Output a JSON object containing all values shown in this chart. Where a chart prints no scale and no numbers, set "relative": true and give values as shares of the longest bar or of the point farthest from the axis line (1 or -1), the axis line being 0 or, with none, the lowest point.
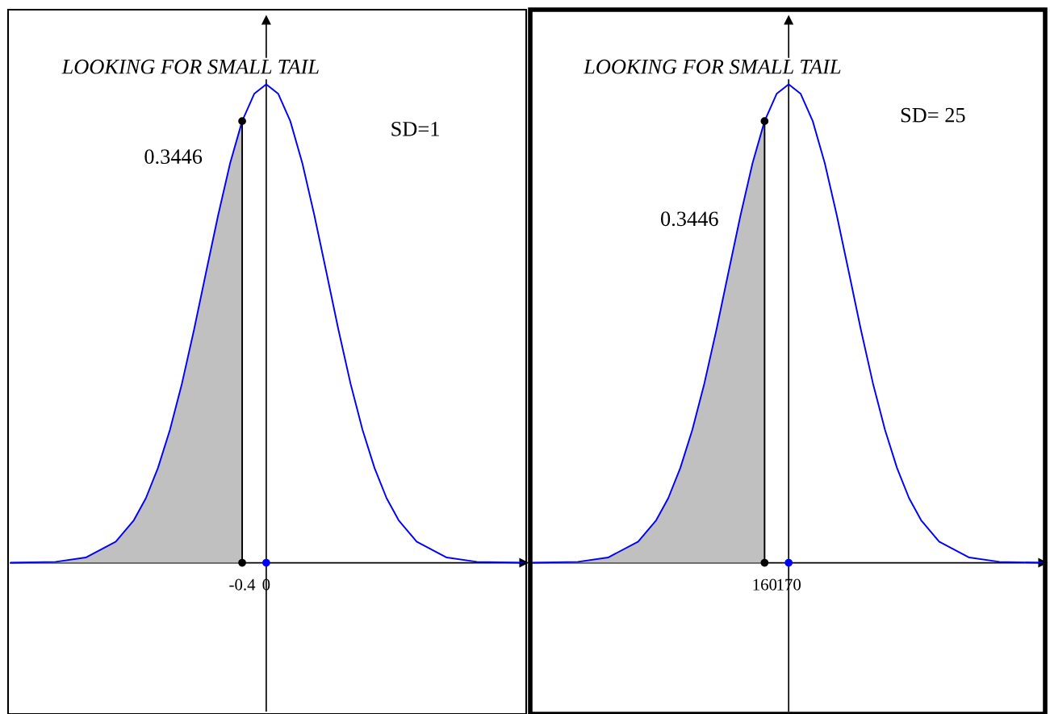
{
  "chart_data": [
    {
      "type": "line",
      "title": "LOOKING FOR SMALL TAIL",
      "relative": true,
      "xlim": [
        -4.25,
        4.28
      ],
      "xticks": [
        -0.4,
        0
      ],
      "ref_lines": [
        {
          "axis": "x",
          "value": 0,
          "color": "#000000"
        }
      ],
      "annotations": [
        "0.3446",
        "SD=1"
      ],
      "series": [
        {
          "type": "area",
          "color": "#c0c0c0",
          "x": [
            -4.25,
            -3.5,
            -3,
            -2.5,
            -2.2,
            -2,
            -1.8,
            -1.6,
            -1.4,
            -1.2,
            -1,
            -0.8,
            -0.6,
            -0.4
          ],
          "values": [
            0,
            0.002,
            0.011,
            0.044,
            0.089,
            0.135,
            0.198,
            0.278,
            0.375,
            0.487,
            0.607,
            0.726,
            0.835,
            0.923
          ]
        },
        {
          "color": "#0000ff",
          "marker": "none",
          "x": [
            -4.25,
            -3.5,
            -3,
            -2.5,
            -2.2,
            -2,
            -1.8,
            -1.6,
            -1.4,
            -1.2,
            -1,
            -0.8,
            -0.6,
            -0.4,
            -0.2,
            0,
            0.2,
            0.4,
            0.6,
            0.8,
            1,
            1.2,
            1.4,
            1.6,
            1.8,
            2,
            2.2,
            2.5,
            3,
            3.5,
            4.28
          ],
          "values": [
            0,
            0.002,
            0.011,
            0.044,
            0.089,
            0.135,
            0.198,
            0.278,
            0.375,
            0.487,
            0.607,
            0.726,
            0.835,
            0.923,
            0.98,
            1,
            0.98,
            0.923,
            0.835,
            0.726,
            0.607,
            0.487,
            0.375,
            0.278,
            0.198,
            0.135,
            0.089,
            0.044,
            0.011,
            0.002,
            0
          ]
        },
        {
          "type": "line",
          "color": "#000000",
          "marker": "circle",
          "x": [
            -0.4,
            -0.4
          ],
          "values": [
            0,
            0.923
          ]
        },
        {
          "type": "scatter",
          "color": "#0000ff",
          "marker": "circle",
          "x": [
            0
          ],
          "values": [
            0
          ]
        }
      ]
    },
    {
      "type": "line",
      "title": "LOOKING FOR SMALL TAIL",
      "relative": true,
      "xlim": [
        63.7,
        275.5
      ],
      "xticks": [
        160,
        170
      ],
      "ref_lines": [
        {
          "axis": "x",
          "value": 170,
          "color": "#000000"
        }
      ],
      "annotations": [
        "0.3446",
        "SD= 25"
      ],
      "series": [
        {
          "type": "area",
          "color": "#c0c0c0",
          "x": [
            63.7,
            82.5,
            95,
            107.5,
            115,
            120,
            125,
            130,
            135,
            140,
            145,
            150,
            155,
            160
          ],
          "values": [
            0,
            0.002,
            0.011,
            0.044,
            0.089,
            0.135,
            0.198,
            0.278,
            0.375,
            0.487,
            0.607,
            0.726,
            0.835,
            0.923
          ]
        },
        {
          "color": "#0000ff",
          "marker": "none",
          "x": [
            63.7,
            82.5,
            95,
            107.5,
            115,
            120,
            125,
            130,
            135,
            140,
            145,
            150,
            155,
            160,
            165,
            170,
            175,
            180,
            185,
            190,
            195,
            200,
            205,
            210,
            215,
            220,
            225,
            232.5,
            245,
            257.5,
            275.5
          ],
          "values": [
            0,
            0.002,
            0.011,
            0.044,
            0.089,
            0.135,
            0.198,
            0.278,
            0.375,
            0.487,
            0.607,
            0.726,
            0.835,
            0.923,
            0.98,
            1,
            0.98,
            0.923,
            0.835,
            0.726,
            0.607,
            0.487,
            0.375,
            0.278,
            0.198,
            0.135,
            0.089,
            0.044,
            0.011,
            0.002,
            0
          ]
        },
        {
          "type": "line",
          "color": "#000000",
          "marker": "circle",
          "x": [
            160,
            160
          ],
          "values": [
            0,
            0.923
          ]
        },
        {
          "type": "scatter",
          "color": "#0000ff",
          "marker": "circle",
          "x": [
            170
          ],
          "values": [
            0
          ]
        }
      ]
    }
  ]
}
